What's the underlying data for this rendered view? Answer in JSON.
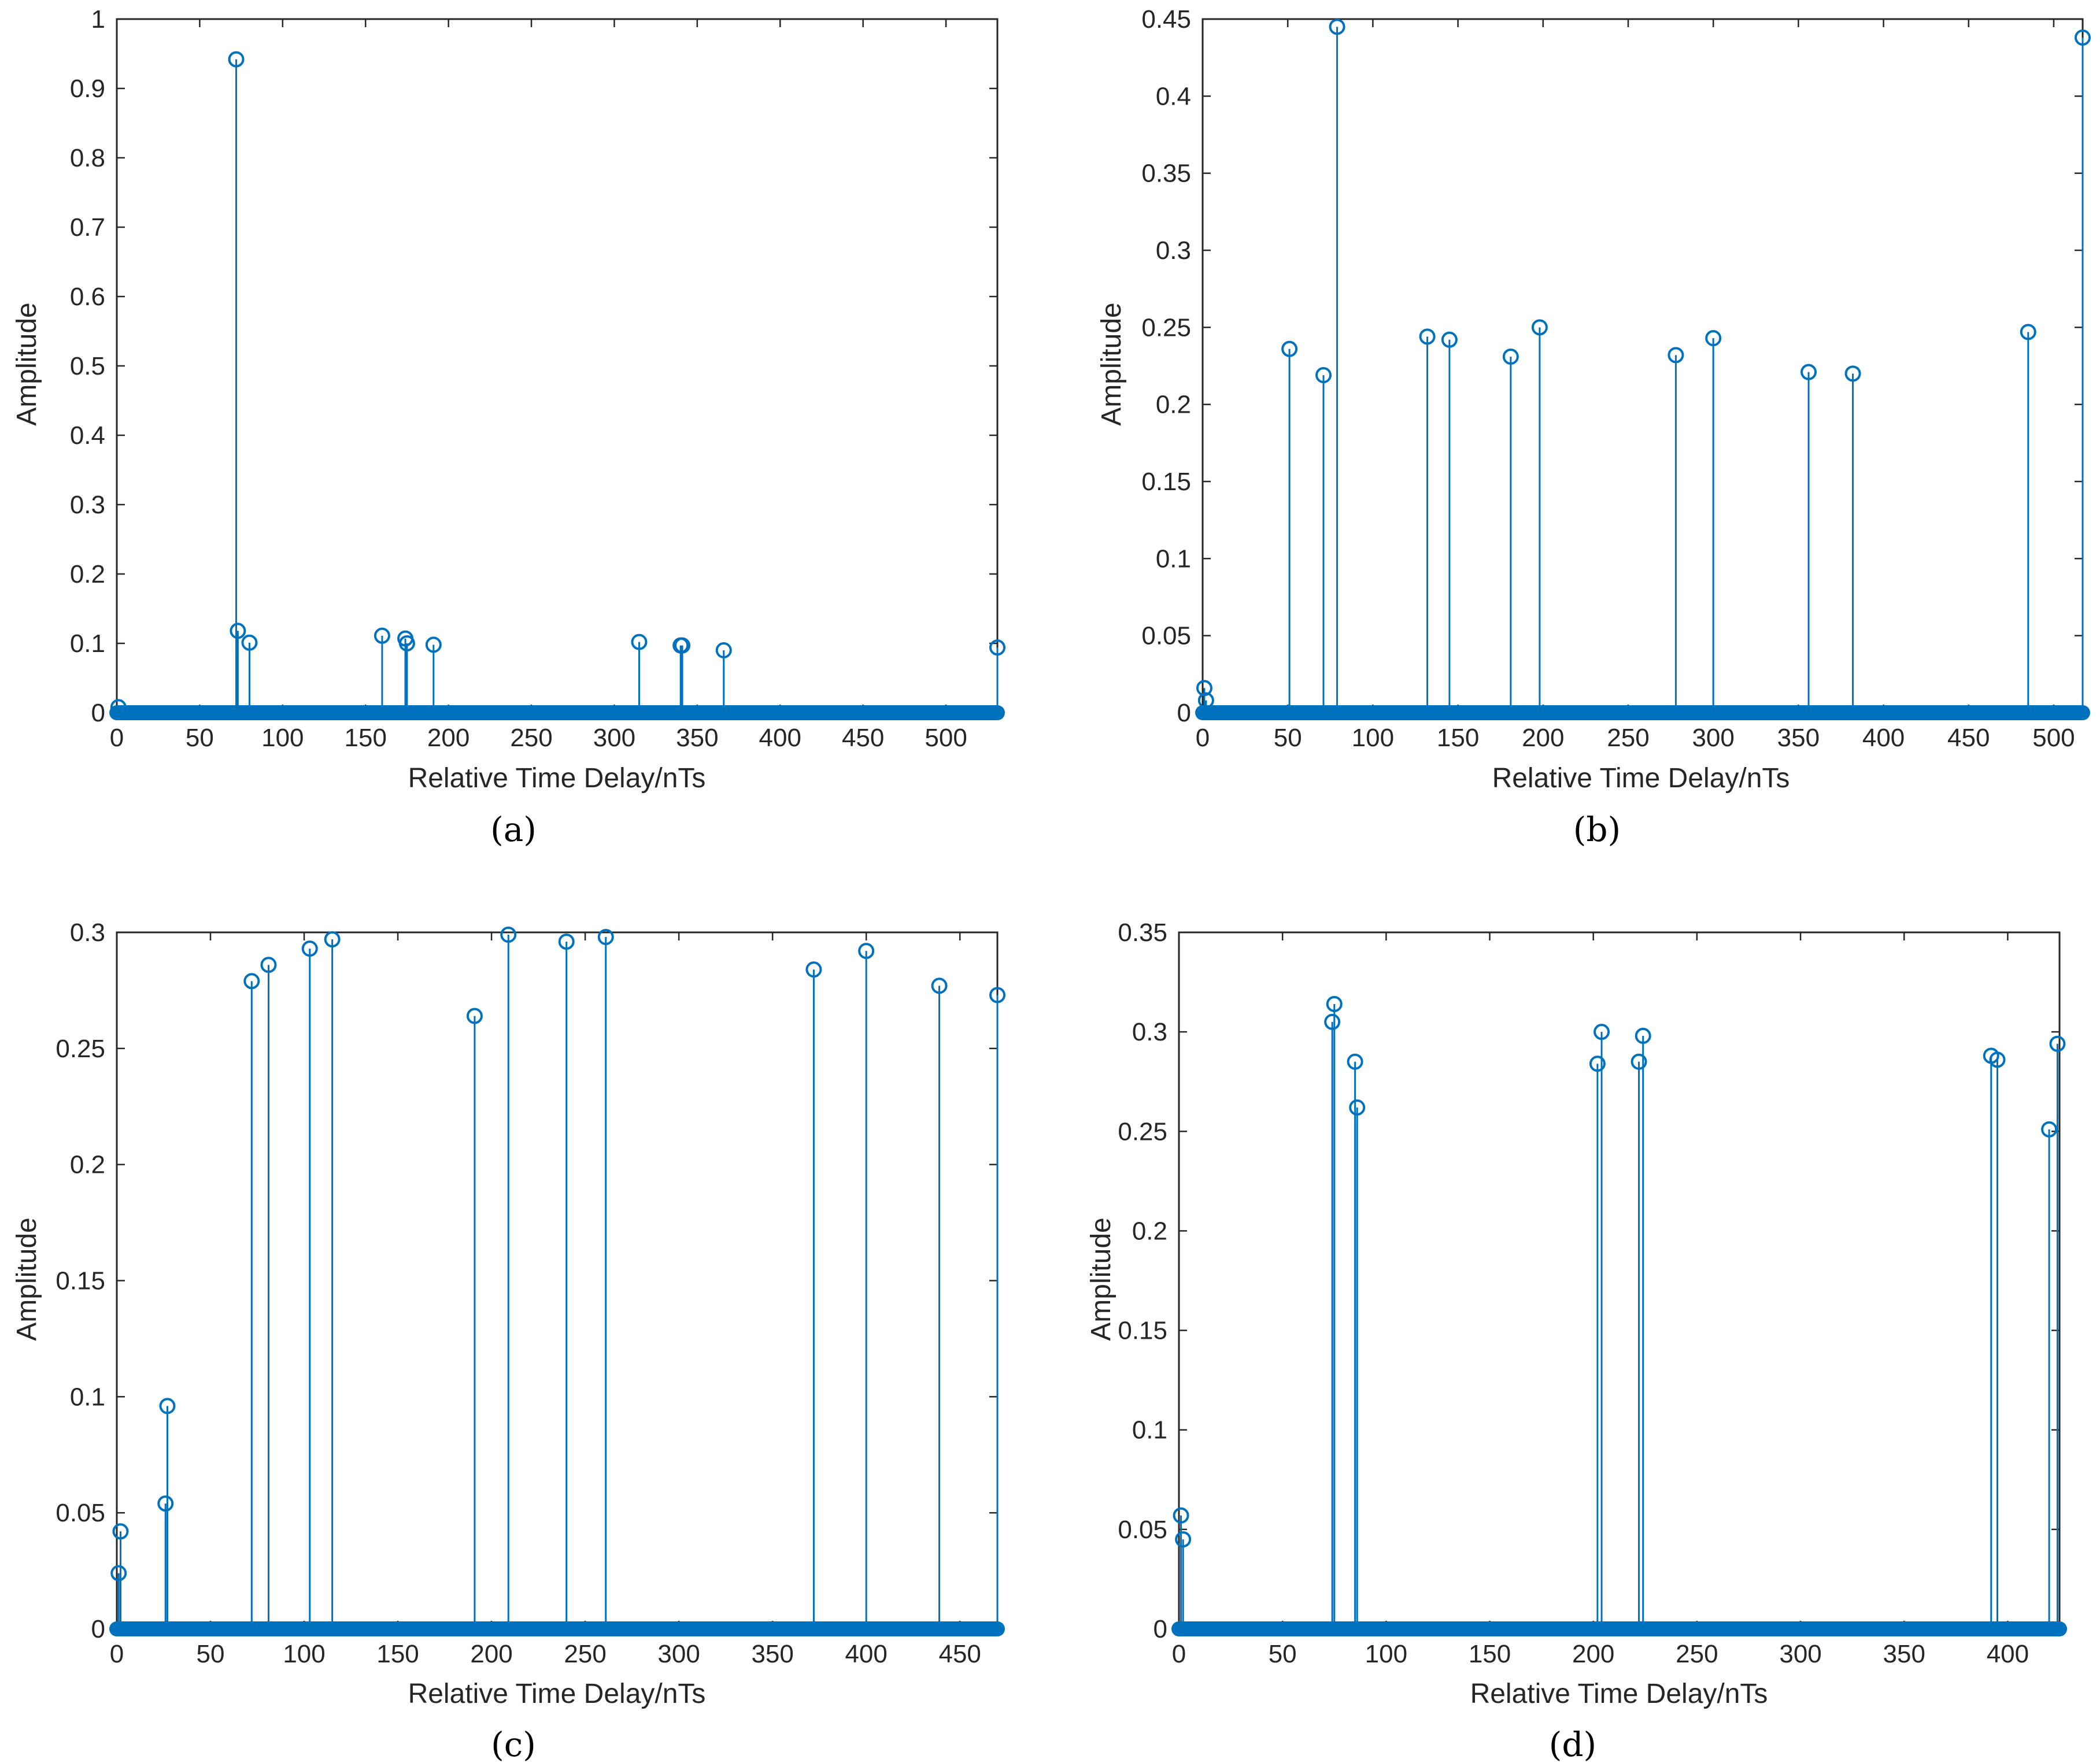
{
  "colors": {
    "stem": "#0072BD",
    "axes": "#262626",
    "background": "#ffffff"
  },
  "chart_data": [
    {
      "type": "stem",
      "caption": "(a)",
      "xlabel": "Relative Time Delay/nTs",
      "ylabel": "Amplitude",
      "xlim": [
        0,
        531
      ],
      "ylim": [
        0,
        1
      ],
      "xticks": [
        0,
        50,
        100,
        150,
        200,
        250,
        300,
        350,
        400,
        450,
        500
      ],
      "yticks": [
        0,
        0.1,
        0.2,
        0.3,
        0.4,
        0.5,
        0.6,
        0.7,
        0.8,
        0.9,
        1
      ],
      "ytick_labels": [
        "0",
        "0.1",
        "0.2",
        "0.3",
        "0.4",
        "0.5",
        "0.6",
        "0.7",
        "0.8",
        "0.9",
        "1"
      ],
      "points": [
        [
          1,
          0.008
        ],
        [
          72,
          0.942
        ],
        [
          73,
          0.118
        ],
        [
          80,
          0.101
        ],
        [
          160,
          0.111
        ],
        [
          174,
          0.107
        ],
        [
          175,
          0.1
        ],
        [
          191,
          0.098
        ],
        [
          315,
          0.102
        ],
        [
          340,
          0.097
        ],
        [
          341,
          0.097
        ],
        [
          366,
          0.09
        ],
        [
          531,
          0.094
        ]
      ]
    },
    {
      "type": "stem",
      "caption": "(b)",
      "xlabel": "Relative Time Delay/nTs",
      "ylabel": "Amplitude",
      "xlim": [
        0,
        517
      ],
      "ylim": [
        0,
        0.45
      ],
      "xticks": [
        0,
        50,
        100,
        150,
        200,
        250,
        300,
        350,
        400,
        450,
        500
      ],
      "yticks": [
        0,
        0.05,
        0.1,
        0.15,
        0.2,
        0.25,
        0.3,
        0.35,
        0.4,
        0.45
      ],
      "ytick_labels": [
        "0",
        "0.05",
        "0.1",
        "0.15",
        "0.2",
        "0.25",
        "0.3",
        "0.35",
        "0.4",
        "0.45"
      ],
      "points": [
        [
          1,
          0.016
        ],
        [
          2,
          0.008
        ],
        [
          51,
          0.236
        ],
        [
          71,
          0.219
        ],
        [
          79,
          0.445
        ],
        [
          132,
          0.244
        ],
        [
          145,
          0.242
        ],
        [
          181,
          0.231
        ],
        [
          198,
          0.25
        ],
        [
          278,
          0.232
        ],
        [
          300,
          0.243
        ],
        [
          356,
          0.221
        ],
        [
          382,
          0.22
        ],
        [
          485,
          0.247
        ],
        [
          517,
          0.438
        ]
      ]
    },
    {
      "type": "stem",
      "caption": "(c)",
      "xlabel": "Relative Time Delay/nTs",
      "ylabel": "Amplitude",
      "xlim": [
        0,
        470
      ],
      "ylim": [
        0,
        0.3
      ],
      "xticks": [
        0,
        50,
        100,
        150,
        200,
        250,
        300,
        350,
        400,
        450
      ],
      "yticks": [
        0,
        0.05,
        0.1,
        0.15,
        0.2,
        0.25,
        0.3
      ],
      "ytick_labels": [
        "0",
        "0.05",
        "0.1",
        "0.15",
        "0.2",
        "0.25",
        "0.3"
      ],
      "points": [
        [
          1,
          0.024
        ],
        [
          2,
          0.042
        ],
        [
          26,
          0.054
        ],
        [
          27,
          0.096
        ],
        [
          72,
          0.279
        ],
        [
          81,
          0.286
        ],
        [
          103,
          0.293
        ],
        [
          115,
          0.297
        ],
        [
          191,
          0.264
        ],
        [
          209,
          0.299
        ],
        [
          240,
          0.296
        ],
        [
          261,
          0.298
        ],
        [
          372,
          0.284
        ],
        [
          400,
          0.292
        ],
        [
          439,
          0.277
        ],
        [
          470,
          0.273
        ]
      ]
    },
    {
      "type": "stem",
      "caption": "(d)",
      "xlabel": "Relative Time Delay/nTs",
      "ylabel": "Amplitude",
      "xlim": [
        0,
        425
      ],
      "ylim": [
        0,
        0.35
      ],
      "xticks": [
        0,
        50,
        100,
        150,
        200,
        250,
        300,
        350,
        400
      ],
      "yticks": [
        0,
        0.05,
        0.1,
        0.15,
        0.2,
        0.25,
        0.3,
        0.35
      ],
      "ytick_labels": [
        "0",
        "0.05",
        "0.1",
        "0.15",
        "0.2",
        "0.25",
        "0.3",
        "0.35"
      ],
      "points": [
        [
          1,
          0.057
        ],
        [
          2,
          0.045
        ],
        [
          74,
          0.305
        ],
        [
          75,
          0.314
        ],
        [
          85,
          0.285
        ],
        [
          86,
          0.262
        ],
        [
          202,
          0.284
        ],
        [
          204,
          0.3
        ],
        [
          222,
          0.285
        ],
        [
          224,
          0.298
        ],
        [
          392,
          0.288
        ],
        [
          395,
          0.286
        ],
        [
          420,
          0.251
        ],
        [
          424,
          0.294
        ]
      ]
    }
  ]
}
